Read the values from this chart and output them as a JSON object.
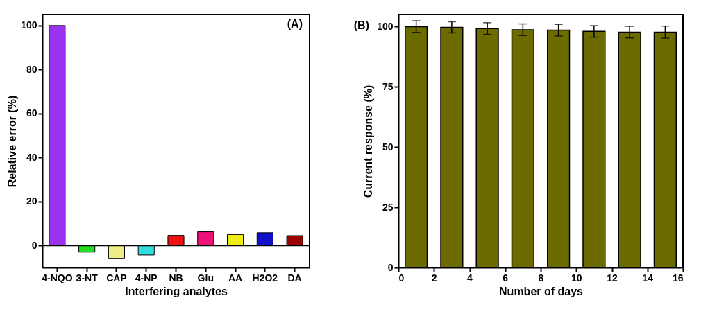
{
  "chart_data": [
    {
      "type": "bar",
      "categories": [
        "4-NQO",
        "3-NT",
        "CAP",
        "4-NP",
        "NB",
        "Glu",
        "AA",
        "H2O2",
        "DA"
      ],
      "values": [
        100,
        -3.0,
        -6.0,
        -4.3,
        4.6,
        6.2,
        5.0,
        5.8,
        4.5
      ],
      "colors": [
        "#9a33ee",
        "#22dd22",
        "#eeee88",
        "#33dddd",
        "#ee1111",
        "#ee1177",
        "#eeee11",
        "#1111cc",
        "#990000"
      ],
      "xlabel": "Interfering analytes",
      "ylabel": "Relative error (%)",
      "ylim": [
        -10,
        105
      ],
      "yticks": [
        0,
        20,
        40,
        60,
        80,
        100
      ],
      "ref_lines": [
        {
          "axis": "y",
          "value": 0
        }
      ],
      "annotations": [
        "(A)"
      ],
      "grid": false
    },
    {
      "type": "bar",
      "x": [
        1,
        3,
        5,
        7,
        9,
        11,
        13,
        15
      ],
      "values": [
        100,
        99.7,
        99.2,
        98.7,
        98.5,
        98.0,
        97.7,
        97.7
      ],
      "errors": [
        2.4,
        2.3,
        2.4,
        2.4,
        2.4,
        2.4,
        2.4,
        2.5
      ],
      "color": "#6b6b00",
      "xlabel": "Number of days",
      "ylabel": "Current response (%)",
      "xlim": [
        0,
        16
      ],
      "xticks": [
        0,
        2,
        4,
        6,
        8,
        10,
        12,
        14,
        16
      ],
      "ylim": [
        0,
        105
      ],
      "yticks": [
        0,
        25,
        50,
        75,
        100
      ],
      "annotations": [
        "(B)"
      ],
      "grid": false
    }
  ]
}
